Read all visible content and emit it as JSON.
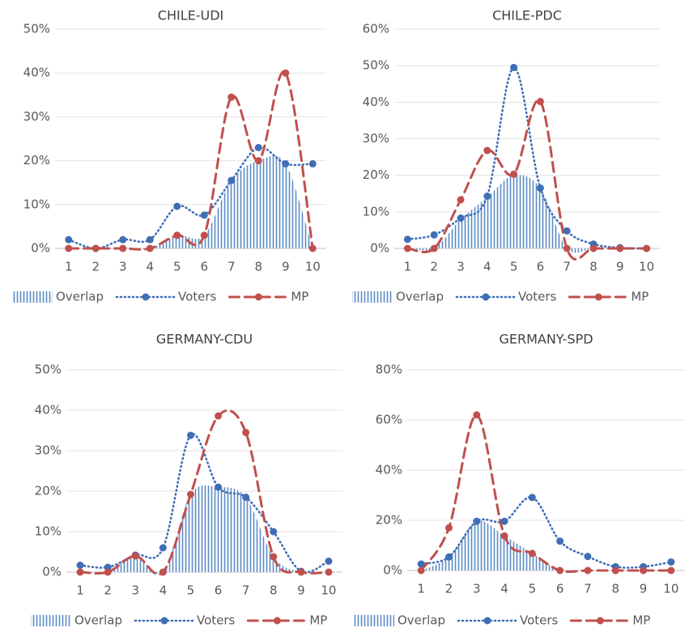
{
  "chart_data": [
    {
      "type": "line",
      "title": "CHILE-UDI",
      "categories": [
        "1",
        "2",
        "3",
        "4",
        "5",
        "6",
        "7",
        "8",
        "9",
        "10"
      ],
      "ylim": [
        0,
        50
      ],
      "yticks": [
        {
          "value": 0,
          "label": "0%"
        },
        {
          "value": 10,
          "label": "10%"
        },
        {
          "value": 20,
          "label": "20%"
        },
        {
          "value": 30,
          "label": "30%"
        },
        {
          "value": 40,
          "label": "40%"
        },
        {
          "value": 50,
          "label": "50%"
        }
      ],
      "grid": true,
      "series": [
        {
          "name": "Overlap",
          "color": "#5b8ac4",
          "kind": "area",
          "values": [
            0,
            0,
            0,
            0,
            3,
            3,
            15.5,
            20,
            19.3,
            0
          ]
        },
        {
          "name": "Voters",
          "color": "#3f6eb5",
          "kind": "dotted",
          "values": [
            2,
            0,
            2,
            2,
            9.6,
            7.6,
            15.5,
            23,
            19.3,
            19.3
          ]
        },
        {
          "name": "MP",
          "color": "#c0504d",
          "kind": "dashed",
          "values": [
            0,
            0,
            0,
            0,
            3,
            3,
            34.5,
            20,
            40,
            0
          ]
        }
      ]
    },
    {
      "type": "line",
      "title": "CHILE-PDC",
      "categories": [
        "1",
        "2",
        "3",
        "4",
        "5",
        "6",
        "7",
        "8",
        "9",
        "10"
      ],
      "ylim": [
        0,
        60
      ],
      "yticks": [
        {
          "value": 0,
          "label": "0%"
        },
        {
          "value": 10,
          "label": "10%"
        },
        {
          "value": 20,
          "label": "20%"
        },
        {
          "value": 30,
          "label": "30%"
        },
        {
          "value": 40,
          "label": "40%"
        },
        {
          "value": 50,
          "label": "50%"
        },
        {
          "value": 60,
          "label": "60%"
        }
      ],
      "grid": true,
      "series": [
        {
          "name": "Overlap",
          "color": "#5b8ac4",
          "kind": "area",
          "values": [
            0,
            0,
            8,
            14,
            20,
            16.5,
            0,
            0,
            0,
            0
          ]
        },
        {
          "name": "Voters",
          "color": "#3f6eb5",
          "kind": "dotted",
          "values": [
            2.5,
            3.7,
            8.3,
            14.3,
            49.5,
            16.5,
            4.8,
            1.2,
            0.2,
            0
          ]
        },
        {
          "name": "MP",
          "color": "#c0504d",
          "kind": "dashed",
          "values": [
            0,
            0,
            13.3,
            26.8,
            20.3,
            40.2,
            0,
            0,
            0,
            0
          ]
        }
      ]
    },
    {
      "type": "line",
      "title": "GERMANY-CDU",
      "categories": [
        "1",
        "2",
        "3",
        "4",
        "5",
        "6",
        "7",
        "8",
        "9",
        "10"
      ],
      "ylim": [
        0,
        50
      ],
      "yticks": [
        {
          "value": 0,
          "label": "0%"
        },
        {
          "value": 10,
          "label": "10%"
        },
        {
          "value": 20,
          "label": "20%"
        },
        {
          "value": 30,
          "label": "30%"
        },
        {
          "value": 40,
          "label": "40%"
        },
        {
          "value": 50,
          "label": "50%"
        }
      ],
      "grid": true,
      "series": [
        {
          "name": "Overlap",
          "color": "#5b8ac4",
          "kind": "area",
          "values": [
            0,
            0,
            4,
            0,
            19.2,
            21,
            18.5,
            3.8,
            0,
            0
          ]
        },
        {
          "name": "Voters",
          "color": "#3f6eb5",
          "kind": "dotted",
          "values": [
            1.7,
            1.2,
            4.2,
            6,
            33.8,
            21,
            18.5,
            10,
            0.2,
            2.7
          ]
        },
        {
          "name": "MP",
          "color": "#c0504d",
          "kind": "dashed",
          "values": [
            0,
            0,
            4,
            0,
            19.2,
            38.6,
            34.5,
            3.8,
            0,
            0
          ]
        }
      ]
    },
    {
      "type": "line",
      "title": "GERMANY-SPD",
      "categories": [
        "1",
        "2",
        "3",
        "4",
        "5",
        "6",
        "7",
        "8",
        "9",
        "10"
      ],
      "ylim": [
        0,
        80
      ],
      "yticks": [
        {
          "value": 0,
          "label": "0%"
        },
        {
          "value": 20,
          "label": "20%"
        },
        {
          "value": 40,
          "label": "40%"
        },
        {
          "value": 60,
          "label": "60%"
        },
        {
          "value": 80,
          "label": "80%"
        }
      ],
      "grid": true,
      "series": [
        {
          "name": "Overlap",
          "color": "#5b8ac4",
          "kind": "area",
          "values": [
            0,
            5.5,
            19.6,
            13.8,
            6.8,
            0,
            0,
            0,
            0,
            0
          ]
        },
        {
          "name": "Voters",
          "color": "#3f6eb5",
          "kind": "dotted",
          "values": [
            2.6,
            5.4,
            19.6,
            19.6,
            29.1,
            11.7,
            5.6,
            1.5,
            1.5,
            3.4
          ]
        },
        {
          "name": "MP",
          "color": "#c0504d",
          "kind": "dashed",
          "values": [
            0,
            17,
            62,
            13.8,
            6.8,
            0,
            0,
            0,
            0,
            0
          ]
        }
      ]
    }
  ]
}
